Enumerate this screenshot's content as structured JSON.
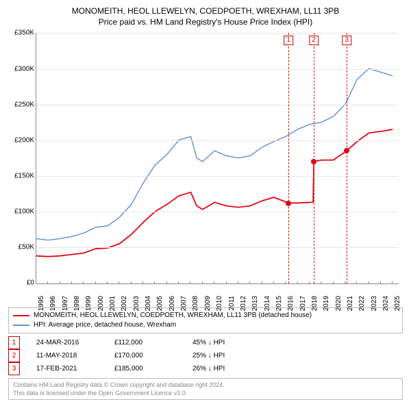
{
  "title_line1": "MONOMEITH, HEOL LLEWELYN, COEDPOETH, WREXHAM, LL11 3PB",
  "title_line2": "Price paid vs. HM Land Registry's House Price Index (HPI)",
  "chart": {
    "type": "line",
    "background_color": "#ffffff",
    "grid_color": "#e6e6e6",
    "axis_color": "#888888",
    "ylim": [
      0,
      350000
    ],
    "ytick_step": 50000,
    "yticks": [
      "£0",
      "£50K",
      "£100K",
      "£150K",
      "£200K",
      "£250K",
      "£300K",
      "£350K"
    ],
    "x_start": 1995,
    "x_end": 2025.5,
    "xticks": [
      1995,
      1996,
      1997,
      1998,
      1999,
      2000,
      2001,
      2002,
      2003,
      2004,
      2005,
      2006,
      2007,
      2008,
      2009,
      2010,
      2011,
      2012,
      2013,
      2014,
      2015,
      2016,
      2017,
      2018,
      2019,
      2020,
      2021,
      2022,
      2023,
      2024,
      2025
    ],
    "label_fontsize": 10,
    "title_fontsize": 12,
    "series": [
      {
        "name": "hpi",
        "color": "#5b8fd6",
        "width": 1.4,
        "points": [
          [
            1995,
            62000
          ],
          [
            1996,
            60000
          ],
          [
            1997,
            62000
          ],
          [
            1998,
            65000
          ],
          [
            1999,
            70000
          ],
          [
            2000,
            78000
          ],
          [
            2001,
            80000
          ],
          [
            2002,
            92000
          ],
          [
            2003,
            110000
          ],
          [
            2004,
            140000
          ],
          [
            2005,
            165000
          ],
          [
            2006,
            180000
          ],
          [
            2007,
            200000
          ],
          [
            2008,
            205000
          ],
          [
            2008.5,
            175000
          ],
          [
            2009,
            170000
          ],
          [
            2010,
            185000
          ],
          [
            2011,
            178000
          ],
          [
            2012,
            175000
          ],
          [
            2013,
            178000
          ],
          [
            2014,
            190000
          ],
          [
            2015,
            198000
          ],
          [
            2016,
            205000
          ],
          [
            2017,
            215000
          ],
          [
            2018,
            222000
          ],
          [
            2019,
            225000
          ],
          [
            2020,
            233000
          ],
          [
            2021,
            250000
          ],
          [
            2022,
            285000
          ],
          [
            2023,
            300000
          ],
          [
            2024,
            295000
          ],
          [
            2025,
            290000
          ]
        ]
      },
      {
        "name": "price_paid",
        "color": "#e30613",
        "width": 1.8,
        "points": [
          [
            1995,
            38000
          ],
          [
            1996,
            37000
          ],
          [
            1997,
            38000
          ],
          [
            1998,
            40000
          ],
          [
            1999,
            42000
          ],
          [
            2000,
            48000
          ],
          [
            2001,
            49000
          ],
          [
            2002,
            55000
          ],
          [
            2003,
            68000
          ],
          [
            2004,
            85000
          ],
          [
            2005,
            100000
          ],
          [
            2006,
            110000
          ],
          [
            2007,
            122000
          ],
          [
            2008,
            127000
          ],
          [
            2008.5,
            108000
          ],
          [
            2009,
            103000
          ],
          [
            2010,
            113000
          ],
          [
            2011,
            108000
          ],
          [
            2012,
            106000
          ],
          [
            2013,
            108000
          ],
          [
            2014,
            115000
          ],
          [
            2015,
            120000
          ],
          [
            2016.23,
            112000
          ],
          [
            2017,
            112000
          ],
          [
            2018.3,
            113000
          ],
          [
            2018.36,
            170000
          ],
          [
            2019,
            172000
          ],
          [
            2020,
            172000
          ],
          [
            2021.13,
            185000
          ],
          [
            2022,
            198000
          ],
          [
            2023,
            210000
          ],
          [
            2024,
            212000
          ],
          [
            2025,
            215000
          ]
        ]
      }
    ],
    "markers": [
      {
        "n": "1",
        "x": 2016.23,
        "y": 112000,
        "color": "#e30613"
      },
      {
        "n": "2",
        "x": 2018.36,
        "y": 170000,
        "color": "#e30613"
      },
      {
        "n": "3",
        "x": 2021.13,
        "y": 185000,
        "color": "#e30613"
      }
    ]
  },
  "legend": {
    "series1_color": "#e30613",
    "series1_label": "MONOMEITH, HEOL LLEWELYN, COEDPOETH, WREXHAM, LL11 3PB (detached house)",
    "series2_color": "#5b8fd6",
    "series2_label": "HPI: Average price, detached house, Wrexham"
  },
  "notes": [
    {
      "n": "1",
      "date": "24-MAR-2016",
      "price": "£112,000",
      "delta": "45% ↓ HPI"
    },
    {
      "n": "2",
      "date": "11-MAY-2018",
      "price": "£170,000",
      "delta": "25% ↓ HPI"
    },
    {
      "n": "3",
      "date": "17-FEB-2021",
      "price": "£185,000",
      "delta": "26% ↓ HPI"
    }
  ],
  "footer_line1": "Contains HM Land Registry data © Crown copyright and database right 2024.",
  "footer_line2": "This data is licensed under the Open Government Licence v3.0."
}
